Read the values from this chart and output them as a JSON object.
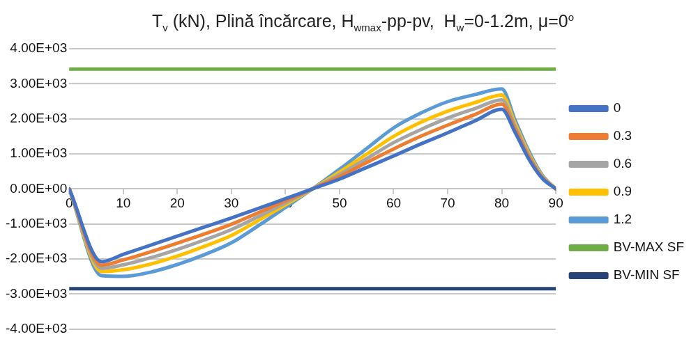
{
  "chart_data": {
    "type": "line",
    "title": "T$_{v}$ (kN), Plină încărcare, H$_{wmax}$-pp-pv,  H$_{w}$=0-1.2m, μ=0$^{o}$",
    "x": [
      0,
      6,
      10,
      15,
      20,
      25,
      30,
      35,
      40,
      45,
      50,
      55,
      60,
      65,
      70,
      75,
      80,
      82.5,
      85,
      87.5,
      90
    ],
    "series": [
      {
        "name": "0",
        "color": "#4472c4",
        "values": [
          0,
          -2080,
          -1870,
          -1610,
          -1350,
          -1090,
          -830,
          -560,
          -280,
          0,
          280,
          610,
          940,
          1280,
          1600,
          1940,
          2270,
          1600,
          850,
          300,
          0
        ]
      },
      {
        "name": "0.3",
        "color": "#ed7d31",
        "values": [
          0,
          -2180,
          -2030,
          -1800,
          -1550,
          -1290,
          -1010,
          -680,
          -340,
          0,
          350,
          750,
          1140,
          1500,
          1820,
          2120,
          2420,
          1690,
          910,
          320,
          0
        ]
      },
      {
        "name": "0.6",
        "color": "#a5a5a5",
        "values": [
          0,
          -2270,
          -2170,
          -1970,
          -1730,
          -1460,
          -1160,
          -790,
          -400,
          0,
          410,
          860,
          1320,
          1690,
          2020,
          2290,
          2540,
          1770,
          960,
          340,
          0
        ]
      },
      {
        "name": "0.9",
        "color": "#ffc000",
        "values": [
          0,
          -2360,
          -2310,
          -2150,
          -1920,
          -1640,
          -1330,
          -900,
          -460,
          0,
          480,
          990,
          1500,
          1900,
          2220,
          2460,
          2680,
          1850,
          1010,
          360,
          0
        ]
      },
      {
        "name": "1.2",
        "color": "#5b9bd5",
        "values": [
          0,
          -2480,
          -2500,
          -2380,
          -2160,
          -1880,
          -1540,
          -1050,
          -530,
          0,
          560,
          1150,
          1740,
          2160,
          2490,
          2690,
          2850,
          1950,
          1080,
          390,
          0
        ]
      },
      {
        "name": "BV-MAX SF",
        "color": "#70ad47",
        "values": [
          3420,
          3420,
          3420,
          3420,
          3420,
          3420,
          3420,
          3420,
          3420,
          3420,
          3420,
          3420,
          3420,
          3420,
          3420,
          3420,
          3420,
          3420,
          3420,
          3420,
          3420
        ]
      },
      {
        "name": "BV-MIN SF",
        "color": "#264478",
        "values": [
          -2850,
          -2850,
          -2850,
          -2850,
          -2850,
          -2850,
          -2850,
          -2850,
          -2850,
          -2850,
          -2850,
          -2850,
          -2850,
          -2850,
          -2850,
          -2850,
          -2850,
          -2850,
          -2850,
          -2850,
          -2850
        ]
      }
    ],
    "xlim": [
      0,
      90
    ],
    "xticks": [
      0,
      10,
      20,
      30,
      40,
      50,
      60,
      70,
      80,
      90
    ],
    "ylim": [
      -4000,
      4000
    ],
    "yticks": [
      {
        "value": -4000,
        "label": "-4.00E+03"
      },
      {
        "value": -3000,
        "label": "-3.00E+03"
      },
      {
        "value": -2000,
        "label": "-2.00E+03"
      },
      {
        "value": -1000,
        "label": "-1.00E+03"
      },
      {
        "value": 0,
        "label": "0.00E+00"
      },
      {
        "value": 1000,
        "label": "1.00E+03"
      },
      {
        "value": 2000,
        "label": "2.00E+03"
      },
      {
        "value": 3000,
        "label": "3.00E+03"
      },
      {
        "value": 4000,
        "label": "4.00E+03"
      }
    ],
    "grid": "y",
    "legend": "right",
    "marker": "none",
    "line_style": "solid"
  }
}
